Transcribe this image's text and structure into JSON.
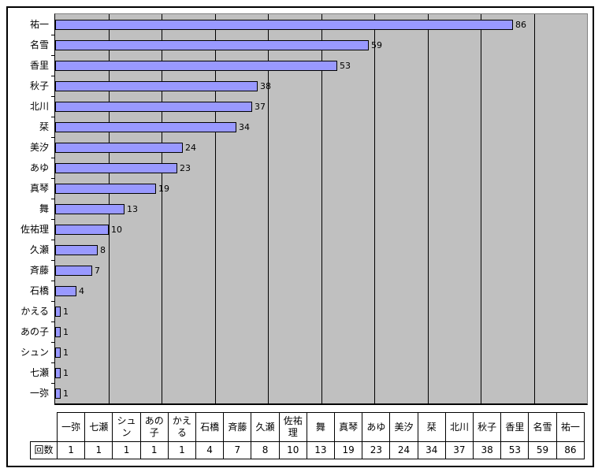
{
  "chart_data": {
    "type": "bar",
    "orientation": "horizontal",
    "title": "",
    "xlabel": "",
    "ylabel": "",
    "categories": [
      "祐一",
      "名雪",
      "香里",
      "秋子",
      "北川",
      "栞",
      "美汐",
      "あゆ",
      "真琴",
      "舞",
      "佐祐理",
      "久瀬",
      "斉藤",
      "石橋",
      "かえる",
      "あの子",
      "シュン",
      "七瀬",
      "一弥"
    ],
    "values": [
      86,
      59,
      53,
      38,
      37,
      34,
      24,
      23,
      19,
      13,
      10,
      8,
      7,
      4,
      1,
      1,
      1,
      1,
      1
    ],
    "data_labels": [
      86,
      59,
      53,
      38,
      37,
      34,
      24,
      23,
      19,
      13,
      10,
      8,
      7,
      4,
      1,
      1,
      1,
      1,
      1
    ],
    "xlim": [
      0,
      100
    ],
    "gridline_interval": 10,
    "grid": "vertical-on",
    "legend": "none",
    "colors": {
      "bar_fill": "#9999ff",
      "bar_border": "#000000",
      "plot_background": "#c0c0c0",
      "plot_border": "#808080",
      "axis": "#000000",
      "gridline": "#000000",
      "chart_background": "#ffffff"
    }
  },
  "table": {
    "row_header": "回数",
    "columns": [
      "一弥",
      "七瀬",
      "シュン",
      "あの子",
      "かえる",
      "石橋",
      "斉藤",
      "久瀬",
      "佐祐理",
      "舞",
      "真琴",
      "あゆ",
      "美汐",
      "栞",
      "北川",
      "秋子",
      "香里",
      "名雪",
      "祐一"
    ],
    "values": [
      1,
      1,
      1,
      1,
      1,
      4,
      7,
      8,
      10,
      13,
      19,
      23,
      24,
      34,
      37,
      38,
      53,
      59,
      86
    ]
  }
}
